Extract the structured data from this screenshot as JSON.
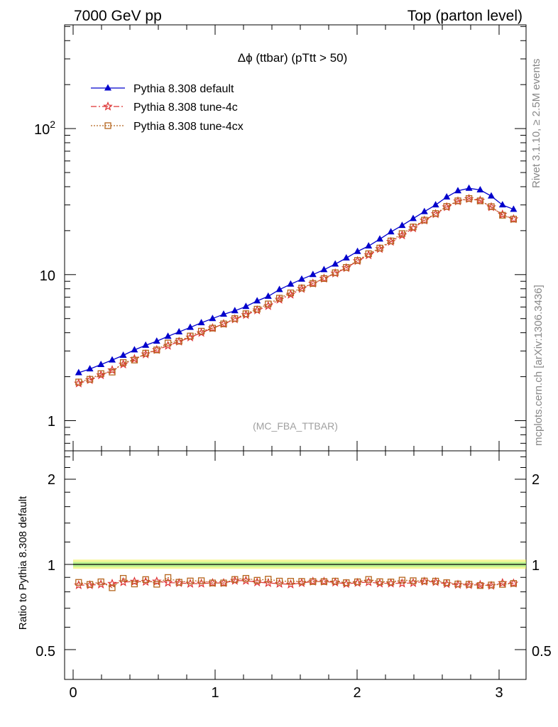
{
  "header": {
    "left": "7000 GeV pp",
    "right": "Top (parton level)"
  },
  "side_text": {
    "rivet": "Rivet 3.1.10, ≥ 2.5M events",
    "mcplots": "mcplots.cern.ch [arXiv:1306.3436]"
  },
  "chart_data": [
    {
      "type": "line",
      "title": "Δϕ (ttbar) (pTtt > 50)",
      "watermark": "(MC_FBA_TTBAR)",
      "yscale": "log",
      "xlim": [
        -0.06,
        3.2
      ],
      "ylim": [
        0.63,
        600
      ],
      "legend_position": "top-left",
      "x_ticks": [
        "0",
        "1",
        "2",
        "3"
      ],
      "y_ticks": [
        "1",
        "10",
        "10^2"
      ],
      "x": [
        0.039,
        0.118,
        0.196,
        0.275,
        0.353,
        0.432,
        0.511,
        0.589,
        0.668,
        0.746,
        0.825,
        0.903,
        0.982,
        1.06,
        1.139,
        1.217,
        1.296,
        1.374,
        1.453,
        1.532,
        1.61,
        1.689,
        1.767,
        1.846,
        1.924,
        2.003,
        2.081,
        2.16,
        2.238,
        2.317,
        2.395,
        2.474,
        2.553,
        2.631,
        2.71,
        2.788,
        2.867,
        2.945,
        3.024,
        3.102
      ],
      "series": [
        {
          "name": "Pythia 8.308 default",
          "color": "#0000cc",
          "marker": "triangle",
          "line": "solid",
          "values": [
            2.13,
            2.26,
            2.42,
            2.6,
            2.8,
            3.05,
            3.28,
            3.5,
            3.78,
            4.05,
            4.35,
            4.68,
            5.0,
            5.35,
            5.65,
            6.05,
            6.6,
            7.1,
            7.9,
            8.6,
            9.3,
            10.0,
            10.8,
            11.8,
            13.0,
            14.4,
            15.7,
            17.5,
            19.6,
            21.7,
            24.2,
            27.0,
            30.0,
            34.0,
            37.5,
            39.0,
            38.0,
            34.5,
            30.0,
            28.0
          ]
        },
        {
          "name": "Pythia 8.308 tune-4c",
          "color": "#dd3333",
          "marker": "star",
          "line": "dashdot",
          "values": [
            1.8,
            1.9,
            2.05,
            2.22,
            2.43,
            2.65,
            2.85,
            3.05,
            3.26,
            3.48,
            3.72,
            4.0,
            4.3,
            4.6,
            4.95,
            5.3,
            5.7,
            6.1,
            6.75,
            7.3,
            8.0,
            8.7,
            9.4,
            10.2,
            11.1,
            12.4,
            13.6,
            15.0,
            16.8,
            18.6,
            20.8,
            23.5,
            26.0,
            29.0,
            31.8,
            33.0,
            32.2,
            29.0,
            25.8,
            24.0
          ]
        },
        {
          "name": "Pythia 8.308 tune-4cx",
          "color": "#b5651d",
          "marker": "open-square",
          "line": "dotted",
          "values": [
            1.84,
            1.92,
            2.1,
            2.15,
            2.5,
            2.6,
            2.9,
            3.05,
            3.4,
            3.5,
            3.8,
            4.1,
            4.3,
            4.6,
            5.0,
            5.4,
            5.8,
            6.3,
            6.9,
            7.5,
            8.1,
            8.7,
            9.4,
            10.3,
            11.2,
            12.5,
            13.9,
            15.2,
            17.0,
            19.1,
            21.2,
            23.6,
            26.2,
            29.3,
            32.0,
            33.2,
            32.0,
            29.2,
            25.5,
            24.0
          ]
        }
      ]
    },
    {
      "type": "line",
      "ylabel": "Ratio to Pythia 8.308 default",
      "ylim": [
        0.4,
        2.5
      ],
      "y_ticks": [
        "0.5",
        "1",
        "2"
      ],
      "x_ticks": [
        "0",
        "1",
        "2",
        "3"
      ],
      "reference_line": 1.0,
      "band_colors": {
        "outer": "#eeee44",
        "inner": "#88ee88"
      },
      "series": [
        {
          "name": "Pythia 8.308 tune-4c",
          "color": "#dd3333",
          "marker": "star",
          "values": [
            0.845,
            0.845,
            0.85,
            0.855,
            0.866,
            0.87,
            0.869,
            0.871,
            0.862,
            0.86,
            0.855,
            0.856,
            0.86,
            0.86,
            0.876,
            0.876,
            0.865,
            0.86,
            0.855,
            0.85,
            0.86,
            0.87,
            0.87,
            0.864,
            0.854,
            0.861,
            0.866,
            0.857,
            0.857,
            0.857,
            0.86,
            0.87,
            0.867,
            0.853,
            0.848,
            0.846,
            0.847,
            0.841,
            0.86,
            0.857
          ]
        },
        {
          "name": "Pythia 8.308 tune-4cx",
          "color": "#b5651d",
          "marker": "open-square",
          "values": [
            0.864,
            0.85,
            0.868,
            0.827,
            0.893,
            0.853,
            0.884,
            0.851,
            0.899,
            0.865,
            0.874,
            0.876,
            0.86,
            0.86,
            0.885,
            0.893,
            0.879,
            0.887,
            0.873,
            0.872,
            0.871,
            0.87,
            0.87,
            0.873,
            0.862,
            0.868,
            0.885,
            0.869,
            0.867,
            0.88,
            0.876,
            0.874,
            0.873,
            0.862,
            0.853,
            0.851,
            0.842,
            0.846,
            0.85,
            0.857
          ]
        }
      ]
    }
  ]
}
